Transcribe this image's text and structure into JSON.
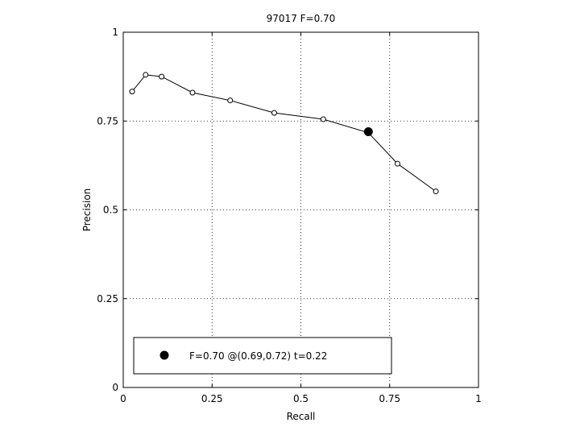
{
  "chart_data": {
    "type": "line",
    "title": "97017 F=0.70",
    "xlabel": "Recall",
    "ylabel": "Precision",
    "xlim": [
      0,
      1
    ],
    "ylim": [
      0,
      1
    ],
    "grid": true,
    "x_ticks": [
      0,
      0.25,
      0.5,
      0.75,
      1
    ],
    "y_ticks": [
      0,
      0.25,
      0.5,
      0.75,
      1
    ],
    "x_tick_labels": [
      "0",
      "0.25",
      "0.5",
      "0.75",
      "1"
    ],
    "y_tick_labels": [
      "0",
      "0.25",
      "0.5",
      "0.75",
      "1"
    ],
    "series": [
      {
        "x": [
          0.025,
          0.063,
          0.108,
          0.195,
          0.301,
          0.425,
          0.563,
          0.69,
          0.772,
          0.88
        ],
        "y": [
          0.833,
          0.88,
          0.875,
          0.83,
          0.808,
          0.773,
          0.755,
          0.717,
          0.63,
          0.552
        ],
        "marker": "circle-open",
        "color": "#000000"
      }
    ],
    "highlight": {
      "x": 0.69,
      "y": 0.72,
      "marker": "circle-filled"
    },
    "legend": {
      "text": "F=0.70 @(0.69,0.72) t=0.22",
      "location": "lower-left"
    }
  }
}
